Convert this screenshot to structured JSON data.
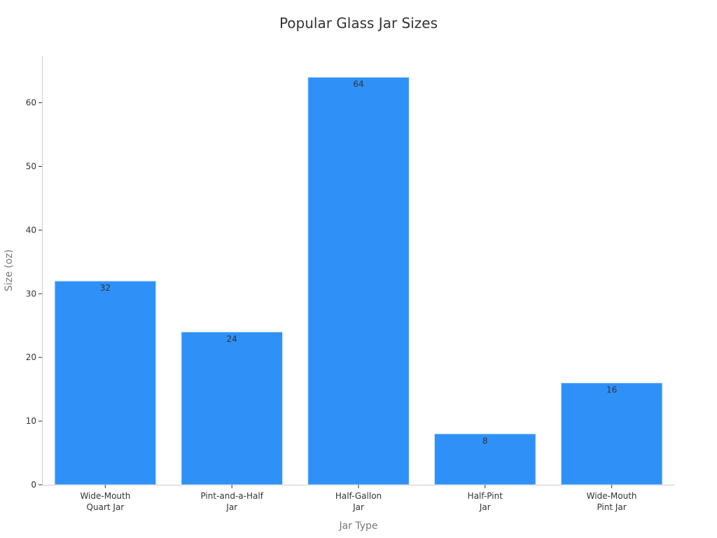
{
  "chart_data": {
    "type": "bar",
    "title": "Popular Glass Jar Sizes",
    "xlabel": "Jar Type",
    "ylabel": "Size (oz)",
    "categories": [
      [
        "Wide-Mouth",
        "Quart Jar"
      ],
      [
        "Pint-and-a-Half",
        "Jar"
      ],
      [
        "Half-Gallon",
        "Jar"
      ],
      [
        "Half-Pint",
        "Jar"
      ],
      [
        "Wide-Mouth",
        "Pint Jar"
      ]
    ],
    "values": [
      32,
      24,
      64,
      8,
      16
    ],
    "ylim": [
      0,
      67
    ],
    "yticks": [
      0,
      10,
      20,
      30,
      40,
      50,
      60
    ],
    "grid": false,
    "legend": "none",
    "bar_color": "#2f91f8",
    "bar_edge_color": "#d9e9fb"
  }
}
